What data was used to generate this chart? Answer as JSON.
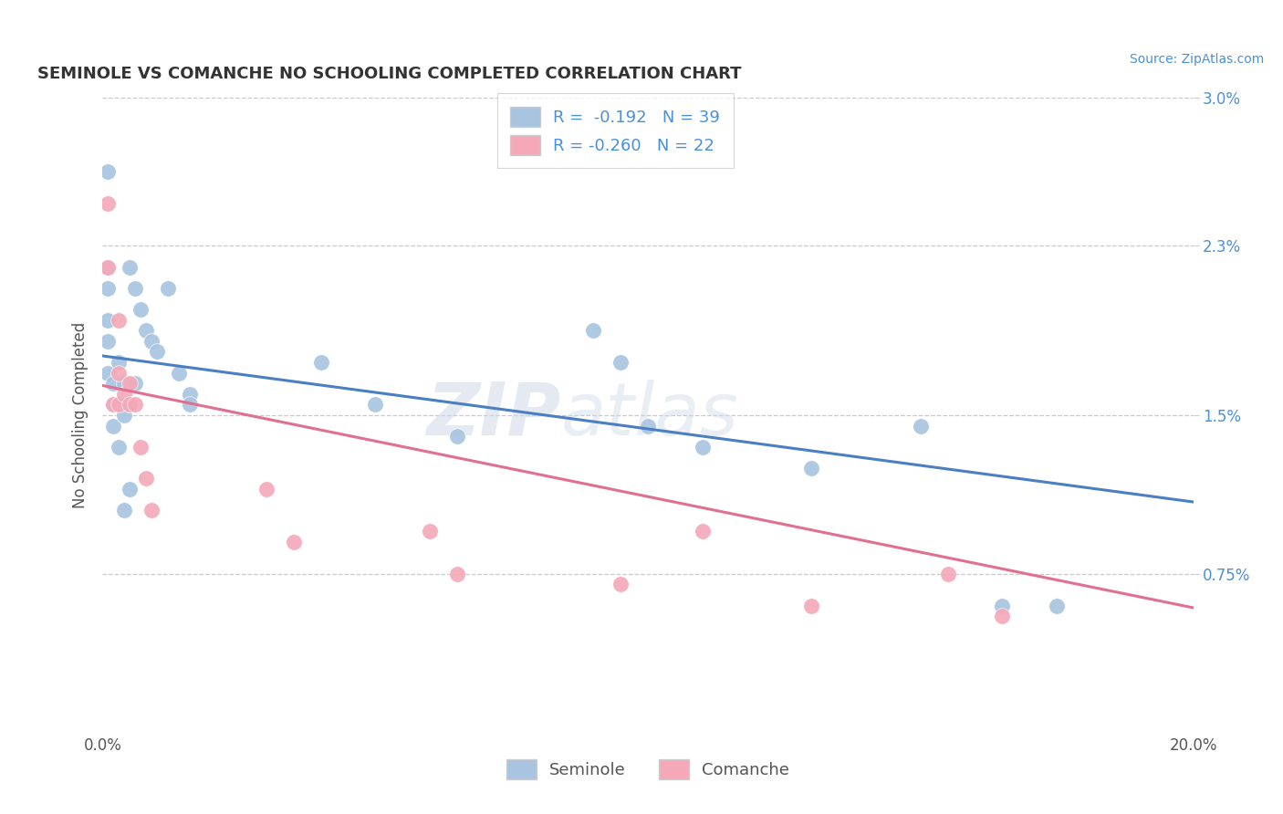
{
  "title": "SEMINOLE VS COMANCHE NO SCHOOLING COMPLETED CORRELATION CHART",
  "source_text": "Source: ZipAtlas.com",
  "ylabel": "No Schooling Completed",
  "xlim": [
    0.0,
    0.2
  ],
  "ylim": [
    0.0,
    0.03
  ],
  "ytick_values": [
    0.0075,
    0.015,
    0.023,
    0.03
  ],
  "ytick_labels": [
    "0.75%",
    "1.5%",
    "2.3%",
    "3.0%"
  ],
  "background_color": "#ffffff",
  "grid_color": "#c8c8c8",
  "seminole_color": "#a8c4e0",
  "comanche_color": "#f4a8b8",
  "line_blue": "#4a7fc1",
  "line_pink": "#e07090",
  "watermark_zip": "ZIP",
  "watermark_atlas": "atlas",
  "legend_r_seminole": "R =  -0.192",
  "legend_n_seminole": "N = 39",
  "legend_r_comanche": "R = -0.260",
  "legend_n_comanche": "N = 22",
  "seminole_x": [
    0.001,
    0.001,
    0.001,
    0.001,
    0.001,
    0.001,
    0.002,
    0.002,
    0.002,
    0.003,
    0.003,
    0.003,
    0.004,
    0.004,
    0.004,
    0.005,
    0.005,
    0.005,
    0.006,
    0.006,
    0.007,
    0.008,
    0.009,
    0.01,
    0.012,
    0.014,
    0.016,
    0.016,
    0.04,
    0.05,
    0.065,
    0.09,
    0.095,
    0.1,
    0.11,
    0.13,
    0.15,
    0.165,
    0.175
  ],
  "seminole_y": [
    0.0265,
    0.022,
    0.021,
    0.0195,
    0.0185,
    0.017,
    0.0165,
    0.0155,
    0.0145,
    0.0175,
    0.0155,
    0.0135,
    0.0165,
    0.015,
    0.0105,
    0.022,
    0.0155,
    0.0115,
    0.021,
    0.0165,
    0.02,
    0.019,
    0.0185,
    0.018,
    0.021,
    0.017,
    0.016,
    0.0155,
    0.0175,
    0.0155,
    0.014,
    0.019,
    0.0175,
    0.0145,
    0.0135,
    0.0125,
    0.0145,
    0.006,
    0.006
  ],
  "comanche_x": [
    0.001,
    0.001,
    0.002,
    0.003,
    0.003,
    0.003,
    0.004,
    0.005,
    0.005,
    0.006,
    0.007,
    0.008,
    0.009,
    0.03,
    0.035,
    0.06,
    0.065,
    0.095,
    0.11,
    0.13,
    0.155,
    0.165
  ],
  "comanche_y": [
    0.025,
    0.022,
    0.0155,
    0.0195,
    0.017,
    0.0155,
    0.016,
    0.0165,
    0.0155,
    0.0155,
    0.0135,
    0.012,
    0.0105,
    0.0115,
    0.009,
    0.0095,
    0.0075,
    0.007,
    0.0095,
    0.006,
    0.0075,
    0.0055
  ],
  "line_blue_x0": 0.0,
  "line_blue_y0": 0.0178,
  "line_blue_x1": 0.2,
  "line_blue_y1": 0.0109,
  "line_pink_x0": 0.0,
  "line_pink_y0": 0.0164,
  "line_pink_x1": 0.2,
  "line_pink_y1": 0.0059
}
